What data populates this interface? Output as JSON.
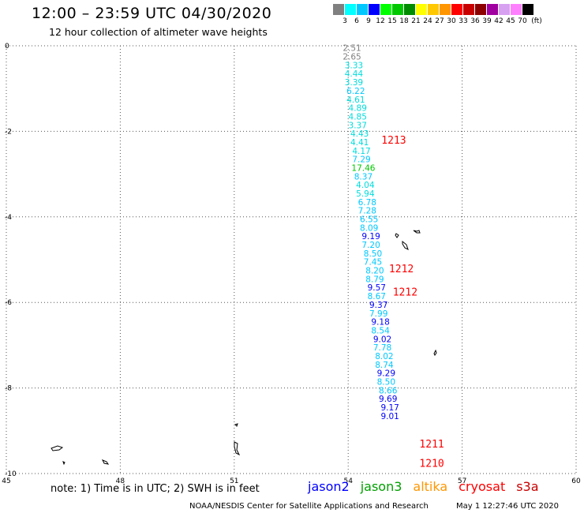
{
  "header": {
    "title": "12:00 – 23:59 UTC 04/30/2020",
    "subtitle": "12 hour collection of altimeter wave heights"
  },
  "color_scale": {
    "unit_label": "(ft)",
    "bins": [
      {
        "label": "3",
        "color": "#808080"
      },
      {
        "label": "6",
        "color": "#00ffff"
      },
      {
        "label": "9",
        "color": "#00c8ff"
      },
      {
        "label": "12",
        "color": "#0000ff"
      },
      {
        "label": "15",
        "color": "#00ff00"
      },
      {
        "label": "18",
        "color": "#00c800"
      },
      {
        "label": "21",
        "color": "#008c00"
      },
      {
        "label": "24",
        "color": "#ffff00"
      },
      {
        "label": "27",
        "color": "#ffc800"
      },
      {
        "label": "30",
        "color": "#ff9600"
      },
      {
        "label": "33",
        "color": "#ff0000"
      },
      {
        "label": "36",
        "color": "#c80000"
      },
      {
        "label": "39",
        "color": "#8c0000"
      },
      {
        "label": "42",
        "color": "#a000a0"
      },
      {
        "label": "45",
        "color": "#d7a0f0"
      },
      {
        "label": "70",
        "color": "#ff80ff"
      },
      {
        "label": "",
        "color": "#000000"
      }
    ]
  },
  "chart_data": {
    "type": "scatter",
    "title": "12:00 – 23:59 UTC 04/30/2020",
    "xlim": [
      45,
      60
    ],
    "ylim": [
      -10,
      0
    ],
    "x_ticks": [
      "45",
      "48",
      "51",
      "54",
      "57",
      "60"
    ],
    "y_ticks": [
      "0",
      "-2",
      "-4",
      "-6",
      "-8",
      "-10"
    ],
    "grid": true,
    "time_labels": [
      {
        "text": "1213",
        "x": 55.2,
        "y": -2.2,
        "color": "#ff0000"
      },
      {
        "text": "1212",
        "x": 55.4,
        "y": -5.2,
        "color": "#ff0000"
      },
      {
        "text": "1212",
        "x": 55.5,
        "y": -5.75,
        "color": "#ff0000"
      },
      {
        "text": "1211",
        "x": 56.2,
        "y": -9.3,
        "color": "#ff0000"
      },
      {
        "text": "1210",
        "x": 56.2,
        "y": -9.75,
        "color": "#ff0000"
      }
    ],
    "series": [
      {
        "name": "jason2",
        "values": [
          {
            "x": 54.1,
            "y": -0.05,
            "label": "2.51",
            "color": "#808080"
          },
          {
            "x": 54.1,
            "y": -0.25,
            "label": "2.65",
            "color": "#808080"
          },
          {
            "x": 54.15,
            "y": -0.45,
            "label": "3.33",
            "color": "#00dcdc"
          },
          {
            "x": 54.15,
            "y": -0.65,
            "label": "4.44",
            "color": "#00dcdc"
          },
          {
            "x": 54.15,
            "y": -0.85,
            "label": "3.39",
            "color": "#00dcdc"
          },
          {
            "x": 54.2,
            "y": -1.05,
            "label": "6.22",
            "color": "#00c8ff"
          },
          {
            "x": 54.2,
            "y": -1.25,
            "label": "4.61",
            "color": "#00dcdc"
          },
          {
            "x": 54.25,
            "y": -1.45,
            "label": "4.89",
            "color": "#00dcdc"
          },
          {
            "x": 54.25,
            "y": -1.65,
            "label": "4.85",
            "color": "#00dcdc"
          },
          {
            "x": 54.25,
            "y": -1.85,
            "label": "3.37",
            "color": "#00dcdc"
          },
          {
            "x": 54.3,
            "y": -2.05,
            "label": "4.43",
            "color": "#00dcdc"
          },
          {
            "x": 54.3,
            "y": -2.25,
            "label": "4.41",
            "color": "#00dcdc"
          },
          {
            "x": 54.35,
            "y": -2.45,
            "label": "4.17",
            "color": "#00dcdc"
          },
          {
            "x": 54.35,
            "y": -2.65,
            "label": "7.29",
            "color": "#00c8ff"
          },
          {
            "x": 54.4,
            "y": -2.85,
            "label": "17.46",
            "color": "#00c800"
          },
          {
            "x": 54.4,
            "y": -3.05,
            "label": "8.37",
            "color": "#00c8ff"
          },
          {
            "x": 54.45,
            "y": -3.25,
            "label": "4.04",
            "color": "#00dcdc"
          },
          {
            "x": 54.45,
            "y": -3.45,
            "label": "5.94",
            "color": "#00dcdc"
          },
          {
            "x": 54.5,
            "y": -3.65,
            "label": "6.78",
            "color": "#00c8ff"
          },
          {
            "x": 54.5,
            "y": -3.85,
            "label": "7.28",
            "color": "#00c8ff"
          },
          {
            "x": 54.55,
            "y": -4.05,
            "label": "6.55",
            "color": "#00c8ff"
          },
          {
            "x": 54.55,
            "y": -4.25,
            "label": "8.09",
            "color": "#00c8ff"
          },
          {
            "x": 54.6,
            "y": -4.45,
            "label": "9.19",
            "color": "#0000ff"
          },
          {
            "x": 54.6,
            "y": -4.65,
            "label": "7.20",
            "color": "#00c8ff"
          },
          {
            "x": 54.65,
            "y": -4.85,
            "label": "8.50",
            "color": "#00c8ff"
          },
          {
            "x": 54.65,
            "y": -5.05,
            "label": "7.45",
            "color": "#00c8ff"
          },
          {
            "x": 54.7,
            "y": -5.25,
            "label": "8.20",
            "color": "#00c8ff"
          },
          {
            "x": 54.7,
            "y": -5.45,
            "label": "8.79",
            "color": "#00c8ff"
          },
          {
            "x": 54.75,
            "y": -5.65,
            "label": "9.57",
            "color": "#0000ff"
          },
          {
            "x": 54.75,
            "y": -5.85,
            "label": "8.67",
            "color": "#00c8ff"
          },
          {
            "x": 54.8,
            "y": -6.05,
            "label": "9.37",
            "color": "#0000ff"
          },
          {
            "x": 54.8,
            "y": -6.25,
            "label": "7.99",
            "color": "#00c8ff"
          },
          {
            "x": 54.85,
            "y": -6.45,
            "label": "9.18",
            "color": "#0000ff"
          },
          {
            "x": 54.85,
            "y": -6.65,
            "label": "8.54",
            "color": "#00c8ff"
          },
          {
            "x": 54.9,
            "y": -6.85,
            "label": "9.02",
            "color": "#0000ff"
          },
          {
            "x": 54.9,
            "y": -7.05,
            "label": "7.78",
            "color": "#00c8ff"
          },
          {
            "x": 54.95,
            "y": -7.25,
            "label": "8.02",
            "color": "#00c8ff"
          },
          {
            "x": 54.95,
            "y": -7.45,
            "label": "8.74",
            "color": "#00c8ff"
          },
          {
            "x": 55.0,
            "y": -7.65,
            "label": "9.29",
            "color": "#0000ff"
          },
          {
            "x": 55.0,
            "y": -7.85,
            "label": "8.50",
            "color": "#00c8ff"
          },
          {
            "x": 55.05,
            "y": -8.05,
            "label": "8.66",
            "color": "#00c8ff"
          },
          {
            "x": 55.05,
            "y": -8.25,
            "label": "9.69",
            "color": "#0000ff"
          },
          {
            "x": 55.1,
            "y": -8.45,
            "label": "9.17",
            "color": "#0000ff"
          },
          {
            "x": 55.1,
            "y": -8.65,
            "label": "9.01",
            "color": "#0000ff"
          }
        ]
      }
    ]
  },
  "footer": {
    "note": "note:  1) Time is in UTC;  2) SWH is in feet",
    "legend": [
      {
        "label": "jason2",
        "color": "#0000ff"
      },
      {
        "label": "jason3",
        "color": "#00a000"
      },
      {
        "label": "altika",
        "color": "#ff9600"
      },
      {
        "label": "cryosat",
        "color": "#ff0000"
      },
      {
        "label": "s3a",
        "color": "#c80000"
      }
    ],
    "credit": "NOAA/NESDIS Center for Satellite Applications and Research",
    "timestamp": "May  1 12:27:46 UTC 2020"
  }
}
